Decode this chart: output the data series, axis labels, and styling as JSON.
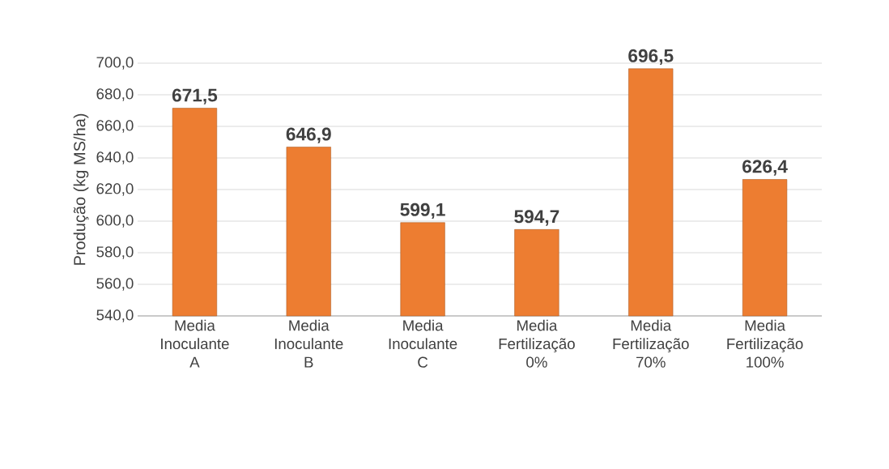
{
  "chart_data": {
    "type": "bar",
    "ylabel": "Produção (kg MS/ha)",
    "categories": [
      "Media Inoculante A",
      "Media Inoculante B",
      "Media Inoculante C",
      "Media Fertilização 0%",
      "Media Fertilização 70%",
      "Media Fertilização 100%"
    ],
    "values": [
      671.5,
      646.9,
      599.1,
      594.7,
      696.5,
      626.4
    ],
    "value_labels": [
      "671,5",
      "646,9",
      "599,1",
      "594,7",
      "696,5",
      "626,4"
    ],
    "color": "#ed7d31",
    "ylim": [
      540,
      700
    ],
    "yticks": [
      {
        "value": 540,
        "label": "540,0"
      },
      {
        "value": 560,
        "label": "560,0"
      },
      {
        "value": 580,
        "label": "580,0"
      },
      {
        "value": 600,
        "label": "600,0"
      },
      {
        "value": 620,
        "label": "620,0"
      },
      {
        "value": 640,
        "label": "640,0"
      },
      {
        "value": 660,
        "label": "660,0"
      },
      {
        "value": 680,
        "label": "680,0"
      },
      {
        "value": 700,
        "label": "700,0"
      }
    ],
    "grid": "y"
  }
}
